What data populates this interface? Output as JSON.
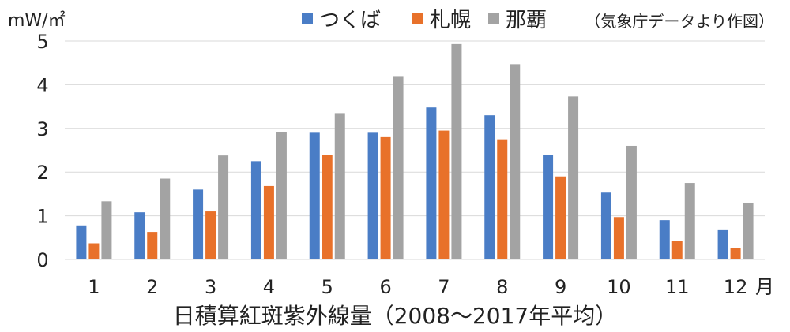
{
  "chart_data": {
    "type": "bar",
    "title": "日積算紅斑紫外線量（2008～2017年平均）",
    "ylabel": "mW/㎡",
    "xunit": "月",
    "source_note": "（気象庁データより作図）",
    "categories": [
      "1",
      "2",
      "3",
      "4",
      "5",
      "6",
      "7",
      "8",
      "9",
      "10",
      "11",
      "12"
    ],
    "ylim": [
      0,
      5
    ],
    "yticks": [
      0,
      1,
      2,
      3,
      4,
      5
    ],
    "grid": true,
    "legend_position": "top",
    "series": [
      {
        "name": "つくば",
        "color": "#4a7dc6",
        "values": [
          0.78,
          1.08,
          1.6,
          2.25,
          2.9,
          2.9,
          3.48,
          3.3,
          2.4,
          1.53,
          0.9,
          0.67
        ]
      },
      {
        "name": "札幌",
        "color": "#e8712a",
        "values": [
          0.37,
          0.63,
          1.1,
          1.68,
          2.4,
          2.8,
          2.95,
          2.75,
          1.9,
          0.97,
          0.43,
          0.27
        ]
      },
      {
        "name": "那覇",
        "color": "#a3a3a3",
        "values": [
          1.33,
          1.85,
          2.38,
          2.92,
          3.35,
          4.18,
          4.93,
          4.47,
          3.73,
          2.6,
          1.75,
          1.3
        ]
      }
    ]
  }
}
